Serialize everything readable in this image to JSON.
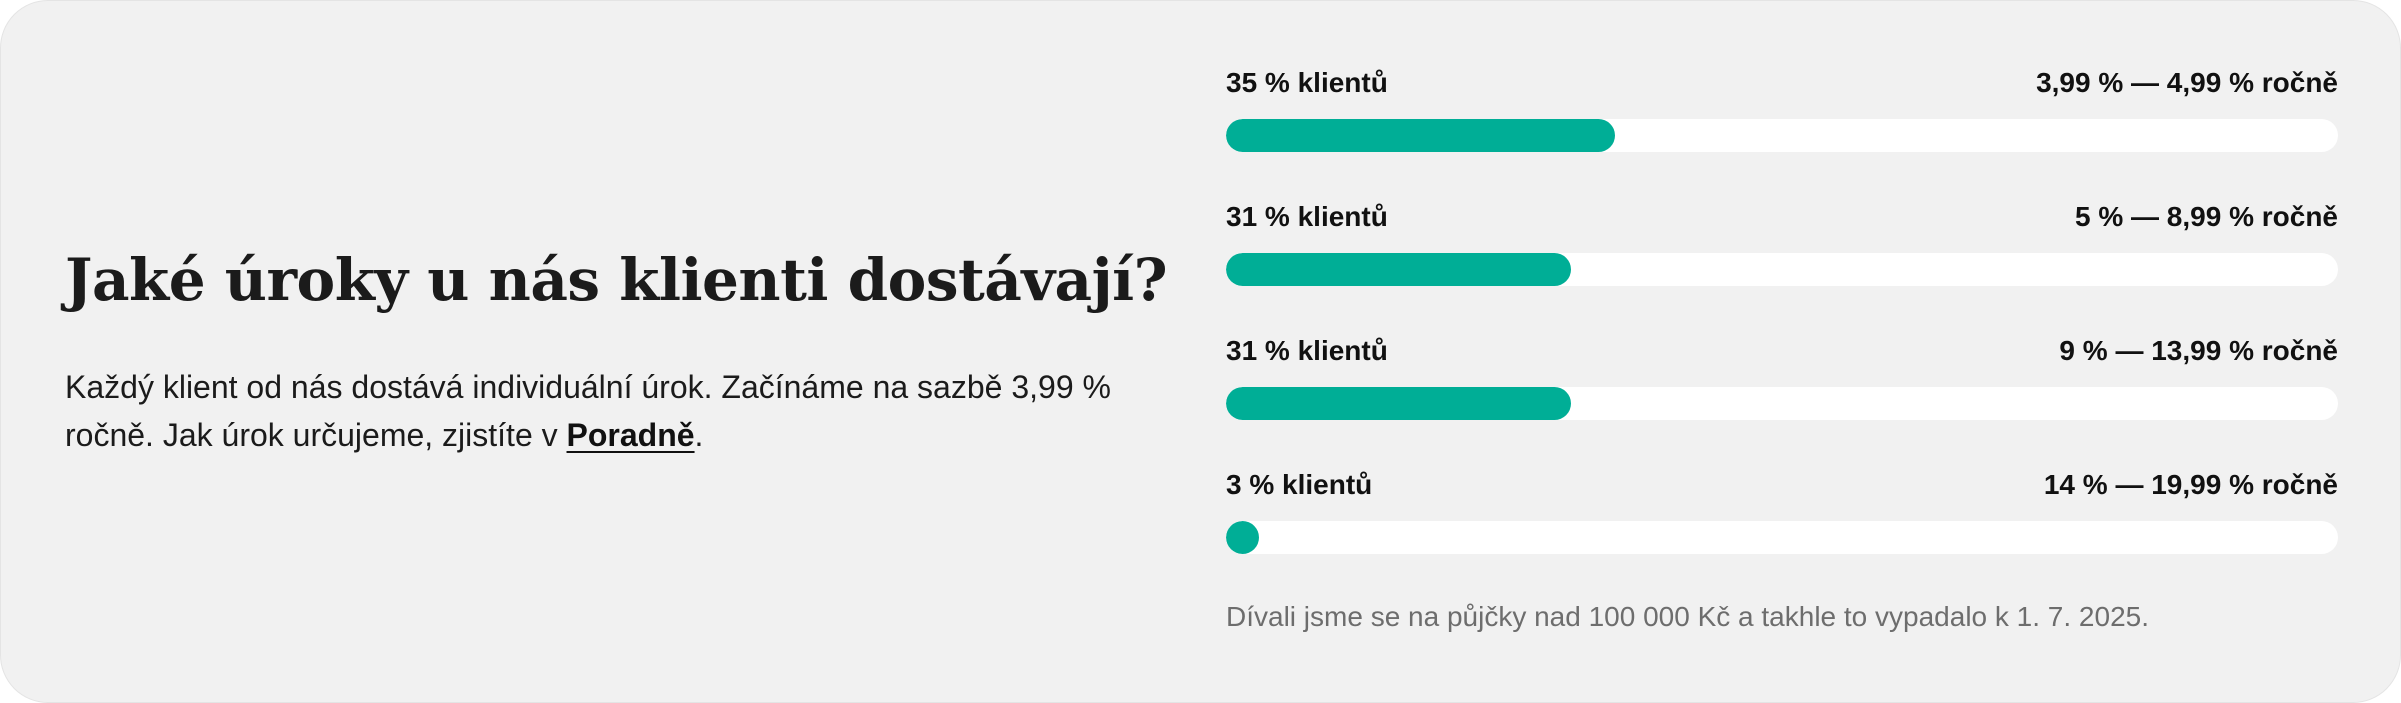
{
  "heading": "Jaké úroky u nás klienti dostávají?",
  "description": {
    "text_before": "Každý klient od nás dostává individuální úrok. Začínáme na sazbě 3,99 % ročně. Jak úrok určujeme, zjistíte v ",
    "link_label": "Poradně",
    "text_after": "."
  },
  "distribution": [
    {
      "clients": "35 % klientů",
      "range": "3,99 % — 4,99 % ročně",
      "share_percent": 35
    },
    {
      "clients": "31 % klientů",
      "range": "5 % — 8,99 % ročně",
      "share_percent": 31
    },
    {
      "clients": "31 % klientů",
      "range": "9 % — 13,99 % ročně",
      "share_percent": 31
    },
    {
      "clients": "3 % klientů",
      "range": "14 % — 19,99 % ročně",
      "share_percent": 3
    }
  ],
  "footnote": "Dívali jsme se na půjčky nad 100 000 Kč a takhle to vypadalo k 1. 7. 2025.",
  "colors": {
    "bar_fill": "#00ae96",
    "bar_track": "#ffffff",
    "card_background": "#f1f1f1"
  }
}
